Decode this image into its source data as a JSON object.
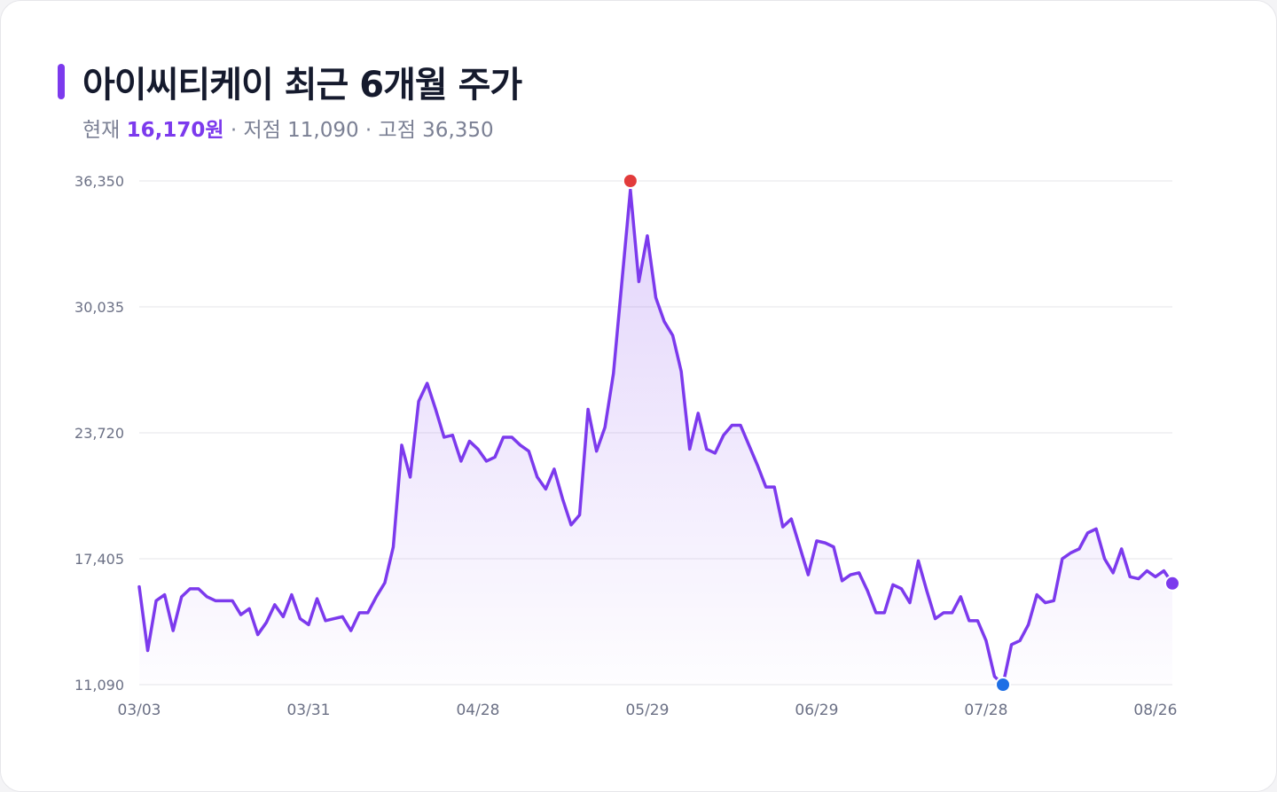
{
  "header": {
    "title": "아이씨티케이 최근 6개월 주가",
    "current_label": "현재",
    "current_value": "16,170원",
    "low_label": "· 저점 11,090",
    "high_label": "· 고점 36,350"
  },
  "colors": {
    "line": "#7c3aed",
    "high_marker": "#e23b3b",
    "low_marker": "#1f6fe5",
    "last_marker": "#7c3aed",
    "grid": "#e6e6ea"
  },
  "chart_data": {
    "type": "area",
    "title": "아이씨티케이 최근 6개월 주가",
    "xlabel": "",
    "ylabel": "",
    "ylim": [
      11090,
      36350
    ],
    "yticks": [
      11090,
      17405,
      23720,
      30035,
      36350
    ],
    "ytick_labels": [
      "11,090",
      "17,405",
      "23,720",
      "30,035",
      "36,350"
    ],
    "xtick_labels": [
      "03/03",
      "03/31",
      "04/28",
      "05/29",
      "06/29",
      "07/28",
      "08/26"
    ],
    "xtick_index": [
      0,
      20,
      40,
      60,
      80,
      100,
      120
    ],
    "grid": true,
    "legend": "none",
    "high": {
      "index": 58,
      "value": 36350
    },
    "low": {
      "index": 102,
      "value": 11090
    },
    "last": {
      "index": 122,
      "value": 16170
    },
    "values": [
      16000,
      12800,
      15300,
      15600,
      13800,
      15500,
      15900,
      15900,
      15500,
      15300,
      15300,
      15300,
      14600,
      14900,
      13600,
      14200,
      15100,
      14500,
      15600,
      14400,
      14100,
      15400,
      14300,
      14400,
      14500,
      13800,
      14700,
      14700,
      15500,
      16200,
      18000,
      23100,
      21500,
      25300,
      26200,
      24900,
      23500,
      23600,
      22300,
      23300,
      22900,
      22300,
      22500,
      23500,
      23500,
      23100,
      22800,
      21500,
      20900,
      21900,
      20400,
      19100,
      19600,
      24900,
      22800,
      24000,
      26700,
      31300,
      35900,
      31300,
      33600,
      30500,
      29300,
      28600,
      26800,
      22900,
      24700,
      22900,
      22700,
      23600,
      24100,
      24100,
      23100,
      22100,
      21000,
      21000,
      19000,
      19400,
      18000,
      16600,
      18300,
      18200,
      18000,
      16300,
      16600,
      16700,
      15800,
      14700,
      14700,
      16100,
      15900,
      15200,
      17300,
      15800,
      14400,
      14700,
      14700,
      15500,
      14300,
      14300,
      13300,
      11500,
      11090,
      13100,
      13300,
      14100,
      15600,
      15200,
      15300,
      17400,
      17700,
      17900,
      18700,
      18900,
      17400,
      16700,
      17900,
      16500,
      16400,
      16800,
      16500,
      16800,
      16170
    ]
  }
}
